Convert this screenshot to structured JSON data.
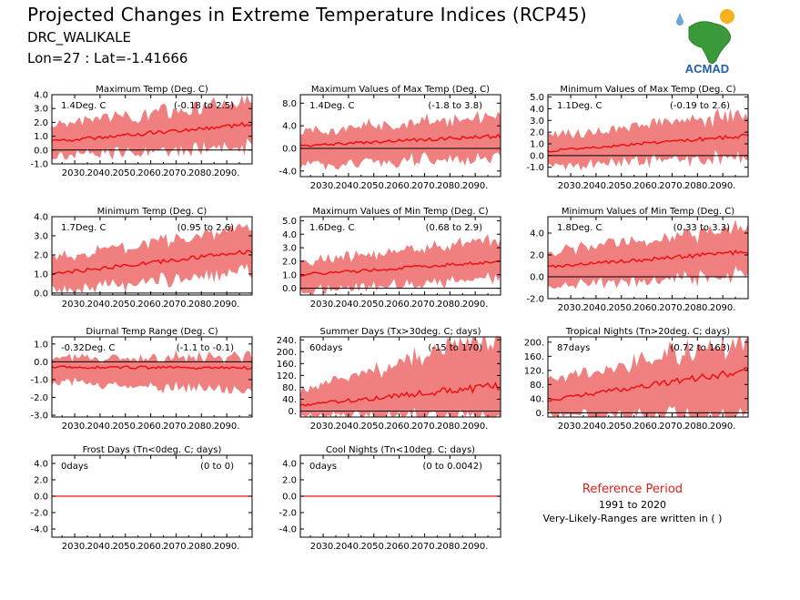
{
  "header": {
    "title": "Projected Changes in Extreme Temperature Indices (RCP45)",
    "location": "DRC_WALIKALE",
    "coords": "Lon=27 : Lat=-1.41666"
  },
  "logo": {
    "text": "ACMAD"
  },
  "reference": {
    "title": "Reference Period",
    "years": "1991 to 2020",
    "note": "Very-Likely-Ranges are written in ( )"
  },
  "colors": {
    "band": "#f08080",
    "line": "#ee1111",
    "zero": "#000000"
  },
  "chart_data": [
    {
      "type": "area",
      "title": "Maximum Temp (Deg. C)",
      "mean": "1.4Deg. C",
      "range": "(-0.18 to 2.5)",
      "x": [
        2021,
        2100
      ],
      "ylim": [
        -1.0,
        4.0
      ],
      "yticks": [
        "-1.0",
        "0.0",
        "1.0",
        "2.0",
        "3.0",
        "4.0"
      ],
      "ytick_values": [
        -1,
        0,
        1,
        2,
        3,
        4
      ],
      "xticks": [
        "2030.",
        "2040.",
        "2050.",
        "2060.",
        "2070.",
        "2080.",
        "2090."
      ],
      "mean_start": 0.6,
      "mean_end": 1.9,
      "band_low_start": -0.3,
      "band_low_end": 0.6,
      "band_high_start": 1.6,
      "band_high_end": 3.2
    },
    {
      "type": "area",
      "title": "Maximum Values of Max Temp (Deg. C)",
      "mean": "1.4Deg. C",
      "range": "(-1.8 to 3.8)",
      "x": [
        2021,
        2100
      ],
      "ylim": [
        -5.0,
        9.5
      ],
      "yticks": [
        "-4.0",
        "0.0",
        "4.0",
        "8.0"
      ],
      "ytick_values": [
        -4,
        0,
        4,
        8
      ],
      "xticks": [
        "2030.",
        "2040.",
        "2050.",
        "2060.",
        "2070.",
        "2080.",
        "2090."
      ],
      "mean_start": 0.5,
      "mean_end": 2.2,
      "band_low_start": -2.2,
      "band_low_end": -0.8,
      "band_high_start": 2.5,
      "band_high_end": 5.0
    },
    {
      "type": "area",
      "title": "Minimum Values of Max Temp (Deg. C)",
      "mean": "1.1Deg. C",
      "range": "(-0.19 to 2.6)",
      "x": [
        2021,
        2100
      ],
      "ylim": [
        -1.8,
        5.2
      ],
      "yticks": [
        "-1.0",
        "0.0",
        "1.0",
        "2.0",
        "3.0",
        "4.0",
        "5.0"
      ],
      "ytick_values": [
        -1,
        0,
        1,
        2,
        3,
        4,
        5
      ],
      "xticks": [
        "2030.",
        "2040.",
        "2050.",
        "2060.",
        "2070.",
        "2080.",
        "2090."
      ],
      "mean_start": 0.4,
      "mean_end": 1.7,
      "band_low_start": -0.6,
      "band_low_end": 0.3,
      "band_high_start": 1.4,
      "band_high_end": 3.2
    },
    {
      "type": "area",
      "title": "Minimum Temp (Deg. C)",
      "mean": "1.7Deg. C",
      "range": "(0.95 to 2.6)",
      "x": [
        2021,
        2100
      ],
      "ylim": [
        -0.1,
        4.0
      ],
      "yticks": [
        "0.0",
        "1.0",
        "2.0",
        "3.0",
        "4.0"
      ],
      "ytick_values": [
        0,
        1,
        2,
        3,
        4
      ],
      "xticks": [
        "2030.",
        "2040.",
        "2050.",
        "2060.",
        "2070.",
        "2080.",
        "2090."
      ],
      "mean_start": 1.0,
      "mean_end": 2.2,
      "band_low_start": 0.3,
      "band_low_end": 1.3,
      "band_high_start": 1.7,
      "band_high_end": 3.2
    },
    {
      "type": "area",
      "title": "Maximum Values of Min Temp (Deg. C)",
      "mean": "1.6Deg. C",
      "range": "(0.68 to 2.9)",
      "x": [
        2021,
        2100
      ],
      "ylim": [
        -0.5,
        5.3
      ],
      "yticks": [
        "0.0",
        "1.0",
        "2.0",
        "3.0",
        "4.0",
        "5.0"
      ],
      "ytick_values": [
        0,
        1,
        2,
        3,
        4,
        5
      ],
      "xticks": [
        "2030.",
        "2040.",
        "2050.",
        "2060.",
        "2070.",
        "2080.",
        "2090."
      ],
      "mean_start": 1.0,
      "mean_end": 2.0,
      "band_low_start": 0.0,
      "band_low_end": 1.0,
      "band_high_start": 1.8,
      "band_high_end": 3.3
    },
    {
      "type": "area",
      "title": "Minimum Values of Min Temp (Deg. C)",
      "mean": "1.8Deg. C",
      "range": "(0.33 to 3.3)",
      "x": [
        2021,
        2100
      ],
      "ylim": [
        -2.0,
        5.5
      ],
      "yticks": [
        "-2.0",
        "0.0",
        "2.0",
        "4.0"
      ],
      "ytick_values": [
        -2,
        0,
        2,
        4
      ],
      "xticks": [
        "2030.",
        "2040.",
        "2050.",
        "2060.",
        "2070.",
        "2080.",
        "2090."
      ],
      "mean_start": 0.9,
      "mean_end": 2.3,
      "band_low_start": -0.5,
      "band_low_end": 0.6,
      "band_high_start": 2.0,
      "band_high_end": 4.0
    },
    {
      "type": "area",
      "title": "Diurnal Temp Range (Deg. C)",
      "mean": "-0.32Deg. C",
      "range": "(-1.1 to -0.1)",
      "x": [
        2021,
        2100
      ],
      "ylim": [
        -3.1,
        1.4
      ],
      "yticks": [
        "-3.0",
        "-2.0",
        "-1.0",
        "0.0",
        "1.0"
      ],
      "ytick_values": [
        -3,
        -2,
        -1,
        0,
        1
      ],
      "xticks": [
        "2030.",
        "2040.",
        "2050.",
        "2060.",
        "2070.",
        "2080.",
        "2090."
      ],
      "mean_start": -0.3,
      "mean_end": -0.35,
      "band_low_start": -1.0,
      "band_low_end": -1.4,
      "band_high_start": 0.1,
      "band_high_end": 0.1
    },
    {
      "type": "area",
      "title": "Summer Days (Tx>30deg. C; days)",
      "mean": "60days",
      "range": "(-15 to 170)",
      "x": [
        2021,
        2100
      ],
      "ylim": [
        -20,
        250
      ],
      "yticks": [
        "0.",
        "40.",
        "80.",
        "120.",
        "160.",
        "200.",
        "240."
      ],
      "ytick_values": [
        0,
        40,
        80,
        120,
        160,
        200,
        240
      ],
      "xticks": [
        "2030.",
        "2040.",
        "2050.",
        "2060.",
        "2070.",
        "2080.",
        "2090."
      ],
      "mean_start": 20,
      "mean_end": 85,
      "band_low_start": -10,
      "band_low_end": 0,
      "band_high_start": 60,
      "band_high_end": 230
    },
    {
      "type": "area",
      "title": "Tropical Nights (Tn>20deg. C; days)",
      "mean": "87days",
      "range": "(0.72 to 163)",
      "x": [
        2021,
        2100
      ],
      "ylim": [
        -12,
        215
      ],
      "yticks": [
        "0.",
        "40.",
        "80.",
        "120.",
        "160.",
        "200."
      ],
      "ytick_values": [
        0,
        40,
        80,
        120,
        160,
        200
      ],
      "xticks": [
        "2030.",
        "2040.",
        "2050.",
        "2060.",
        "2070.",
        "2080.",
        "2090."
      ],
      "mean_start": 35,
      "mean_end": 120,
      "band_low_start": 0,
      "band_low_end": 10,
      "band_high_start": 80,
      "band_high_end": 190
    },
    {
      "type": "line",
      "title": "Frost Days (Tn<0deg. C; days)",
      "mean": "0days",
      "range": "(0 to 0)",
      "x": [
        2021,
        2100
      ],
      "ylim": [
        -5.0,
        5.0
      ],
      "yticks": [
        "-4.0",
        "-2.0",
        "0.0",
        "2.0",
        "4.0"
      ],
      "ytick_values": [
        -4,
        -2,
        0,
        2,
        4
      ],
      "xticks": [
        "2030.",
        "2040.",
        "2050.",
        "2060.",
        "2070.",
        "2080.",
        "2090."
      ],
      "mean_start": 0,
      "mean_end": 0,
      "band_low_start": 0,
      "band_low_end": 0,
      "band_high_start": 0,
      "band_high_end": 0
    },
    {
      "type": "line",
      "title": "Cool Nights (Tn<10deg. C; days)",
      "mean": "0days",
      "range": "(0 to 0.0042)",
      "x": [
        2021,
        2100
      ],
      "ylim": [
        -5.0,
        5.0
      ],
      "yticks": [
        "-4.0",
        "-2.0",
        "0.0",
        "2.0",
        "4.0"
      ],
      "ytick_values": [
        -4,
        -2,
        0,
        2,
        4
      ],
      "xticks": [
        "2030.",
        "2040.",
        "2050.",
        "2060.",
        "2070.",
        "2080.",
        "2090."
      ],
      "mean_start": 0,
      "mean_end": 0,
      "band_low_start": 0,
      "band_low_end": 0,
      "band_high_start": 0,
      "band_high_end": 0
    }
  ]
}
